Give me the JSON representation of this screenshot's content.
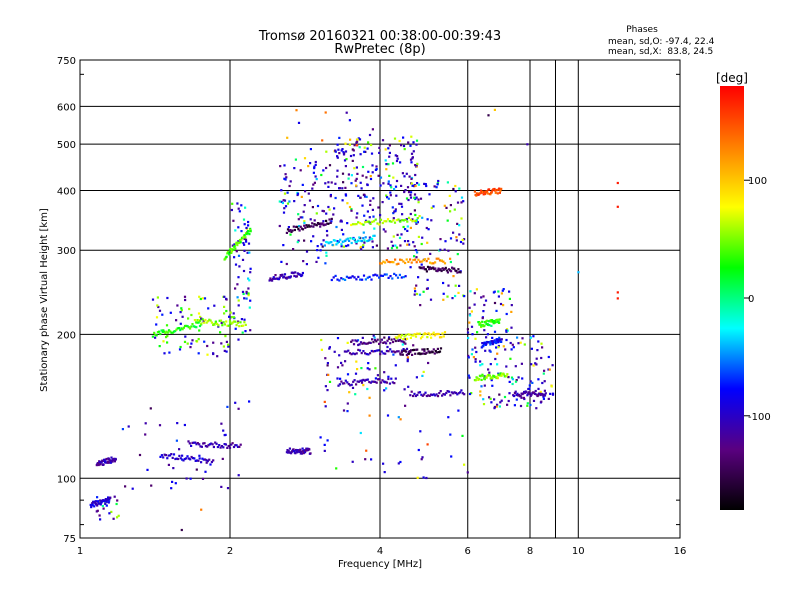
{
  "chart_data": {
    "type": "scatter",
    "title": "Tromsø 20160321 00:38:00-00:39:43",
    "subtitle": "RwPretec (8p)",
    "xlabel": "Frequency [MHz]",
    "ylabel": "Stationary phase Virtual Height [km]",
    "x_scale": "log",
    "y_scale": "log",
    "xlim": [
      1,
      16
    ],
    "ylim": [
      75,
      750
    ],
    "x_ticks": [
      1,
      2,
      4,
      6,
      8,
      10,
      16
    ],
    "x_minor_gridlines": [
      9
    ],
    "y_ticks": [
      75,
      100,
      200,
      300,
      400,
      500,
      600,
      750
    ],
    "grid": true,
    "phase_stats": {
      "title": "Phases",
      "line_o": "mean, sd,O: -97.4, 22.4",
      "line_x": "mean, sd,X:  83.8, 24.5"
    },
    "colorbar": {
      "label": "[deg]",
      "ticks": [
        100,
        0,
        -100
      ],
      "range": [
        -180,
        180
      ],
      "colors": [
        "#000000",
        "#5a0080",
        "#0000ff",
        "#00ffff",
        "#00ff00",
        "#ffff00",
        "#ff8000",
        "#ff0000"
      ]
    },
    "traces": [
      {
        "x": [
          1.05,
          1.15
        ],
        "y": [
          88,
          90
        ],
        "phase": -95
      },
      {
        "x": [
          1.08,
          1.18
        ],
        "y": [
          107,
          110
        ],
        "phase": -110
      },
      {
        "x": [
          1.45,
          1.85
        ],
        "y": [
          112,
          108
        ],
        "phase": -100
      },
      {
        "x": [
          1.65,
          2.1
        ],
        "y": [
          118,
          117
        ],
        "phase": -110
      },
      {
        "x": [
          2.6,
          2.9
        ],
        "y": [
          114,
          114
        ],
        "phase": -110
      },
      {
        "x": [
          1.4,
          1.75
        ],
        "y": [
          200,
          210
        ],
        "phase": 30
      },
      {
        "x": [
          1.7,
          2.15
        ],
        "y": [
          213,
          210
        ],
        "phase": 55
      },
      {
        "x": [
          1.95,
          2.2
        ],
        "y": [
          290,
          330
        ],
        "phase": 40
      },
      {
        "x": [
          2.4,
          2.8
        ],
        "y": [
          262,
          268
        ],
        "phase": -110
      },
      {
        "x": [
          2.6,
          3.2
        ],
        "y": [
          330,
          345
        ],
        "phase": -150
      },
      {
        "x": [
          3.1,
          3.9
        ],
        "y": [
          310,
          318
        ],
        "phase": -30
      },
      {
        "x": [
          3.2,
          4.5
        ],
        "y": [
          262,
          265
        ],
        "phase": -70
      },
      {
        "x": [
          3.5,
          4.8
        ],
        "y": [
          340,
          350
        ],
        "phase": 60
      },
      {
        "x": [
          4.0,
          5.4
        ],
        "y": [
          283,
          285
        ],
        "phase": 120
      },
      {
        "x": [
          4.8,
          5.8
        ],
        "y": [
          275,
          272
        ],
        "phase": -150
      },
      {
        "x": [
          3.4,
          4.6
        ],
        "y": [
          183,
          185
        ],
        "phase": -110
      },
      {
        "x": [
          4.4,
          5.3
        ],
        "y": [
          183,
          185
        ],
        "phase": -150
      },
      {
        "x": [
          3.5,
          4.5
        ],
        "y": [
          192,
          195
        ],
        "phase": -130
      },
      {
        "x": [
          4.3,
          5.4
        ],
        "y": [
          197,
          200
        ],
        "phase": 80
      },
      {
        "x": [
          3.3,
          4.3
        ],
        "y": [
          158,
          160
        ],
        "phase": -110
      },
      {
        "x": [
          4.6,
          5.9
        ],
        "y": [
          150,
          151
        ],
        "phase": -110
      },
      {
        "x": [
          6.3,
          6.95
        ],
        "y": [
          210,
          213
        ],
        "phase": 30
      },
      {
        "x": [
          6.4,
          7.0
        ],
        "y": [
          190,
          195
        ],
        "phase": -80
      },
      {
        "x": [
          7.4,
          8.6
        ],
        "y": [
          150,
          151
        ],
        "phase": -110
      },
      {
        "x": [
          6.2,
          7.2
        ],
        "y": [
          162,
          165
        ],
        "phase": 50
      },
      {
        "x": [
          6.2,
          7.0
        ],
        "y": [
          395,
          400
        ],
        "phase": 150
      }
    ],
    "points": [
      {
        "x": 12.0,
        "y": 415,
        "phase": 170
      },
      {
        "x": 12.0,
        "y": 370,
        "phase": 170
      },
      {
        "x": 12.0,
        "y": 245,
        "phase": 170
      },
      {
        "x": 12.0,
        "y": 238,
        "phase": 170
      },
      {
        "x": 10.0,
        "y": 270,
        "phase": -40
      },
      {
        "x": 7.9,
        "y": 500,
        "phase": -110
      },
      {
        "x": 6.8,
        "y": 590,
        "phase": 100
      },
      {
        "x": 6.6,
        "y": 575,
        "phase": -150
      },
      {
        "x": 1.6,
        "y": 78,
        "phase": -150
      },
      {
        "x": 1.75,
        "y": 86,
        "phase": 130
      }
    ],
    "clusters": [
      {
        "x": [
          2.0,
          2.2
        ],
        "y": [
          200,
          380
        ],
        "phase": [
          -120,
          80
        ],
        "n": 70
      },
      {
        "x": [
          2.5,
          3.2
        ],
        "y": [
          280,
          470
        ],
        "phase": [
          -150,
          120
        ],
        "n": 110
      },
      {
        "x": [
          3.2,
          4.8
        ],
        "y": [
          300,
          520
        ],
        "phase": [
          -150,
          120
        ],
        "n": 260
      },
      {
        "x": [
          4.6,
          5.9
        ],
        "y": [
          230,
          420
        ],
        "phase": [
          -150,
          130
        ],
        "n": 110
      },
      {
        "x": [
          6.0,
          7.4
        ],
        "y": [
          140,
          250
        ],
        "phase": [
          -150,
          130
        ],
        "n": 120
      },
      {
        "x": [
          7.3,
          8.9
        ],
        "y": [
          140,
          200
        ],
        "phase": [
          -150,
          120
        ],
        "n": 70
      },
      {
        "x": [
          1.4,
          2.1
        ],
        "y": [
          180,
          240
        ],
        "phase": [
          20,
          80
        ],
        "n": 90
      },
      {
        "x": [
          1.2,
          2.2
        ],
        "y": [
          95,
          150
        ],
        "phase": [
          -150,
          -60
        ],
        "n": 40
      },
      {
        "x": [
          1.05,
          1.2
        ],
        "y": [
          82,
          92
        ],
        "phase": [
          -130,
          100
        ],
        "n": 25
      },
      {
        "x": [
          3.0,
          6.0
        ],
        "y": [
          100,
          150
        ],
        "phase": [
          -120,
          160
        ],
        "n": 40
      },
      {
        "x": [
          3.0,
          5.0
        ],
        "y": [
          150,
          200
        ],
        "phase": [
          -150,
          140
        ],
        "n": 70
      },
      {
        "x": [
          2.5,
          4.0
        ],
        "y": [
          480,
          600
        ],
        "phase": [
          60,
          170
        ],
        "n": 15
      }
    ]
  }
}
